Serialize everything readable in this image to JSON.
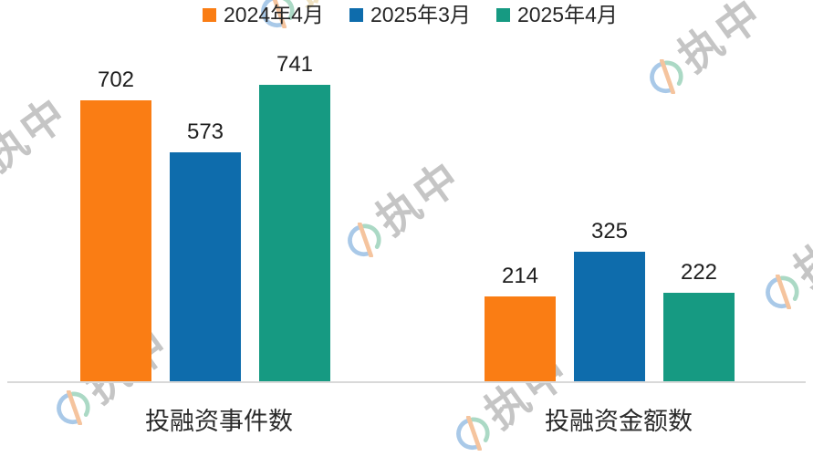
{
  "watermark": {
    "text": "执中",
    "logo_name": "zhizhong-brand-logo"
  },
  "chart_data": {
    "type": "bar",
    "title": "",
    "categories": [
      "投融资事件数",
      "投融资金额数"
    ],
    "series": [
      {
        "name": "2024年4月",
        "color": "#FA7D14",
        "values": [
          702,
          214
        ]
      },
      {
        "name": "2025年3月",
        "color": "#0E6CAC",
        "values": [
          573,
          325
        ]
      },
      {
        "name": "2025年4月",
        "color": "#169A82",
        "values": [
          741,
          222
        ]
      }
    ],
    "value_labels": [
      [
        702,
        214
      ],
      [
        573,
        325
      ],
      [
        741,
        222
      ]
    ],
    "legend_position": "top",
    "legend_entries": [
      "2024年4月",
      "2025年3月",
      "2025年4月"
    ],
    "xlabel": "",
    "ylabel": "",
    "ylim": [
      0,
      850
    ],
    "grid": false,
    "axis_line_color": "#D9D9D9",
    "label_color": "#1F1F1F",
    "watermark_colors": {
      "text": "#C5C5C5",
      "ring_blue": "#A9C9E8",
      "ring_teal": "#ABD9C5",
      "slash_orange": "#F5C49E"
    }
  }
}
